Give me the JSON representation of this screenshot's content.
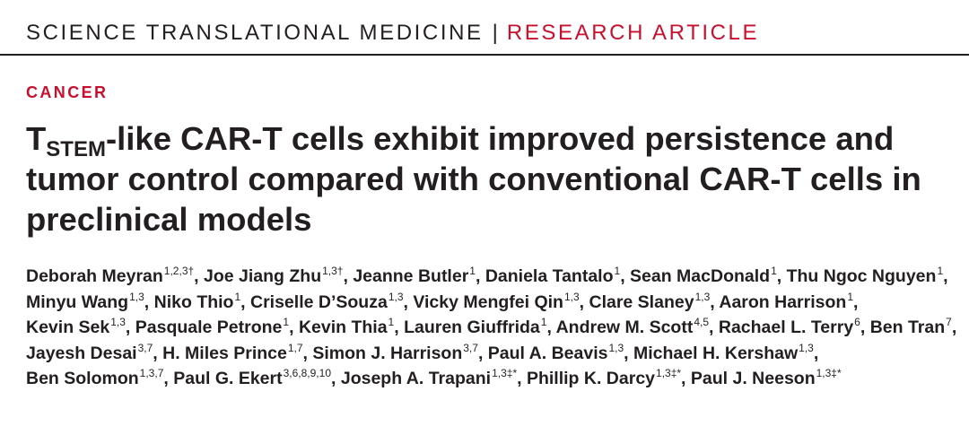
{
  "header": {
    "journal": "SCIENCE TRANSLATIONAL MEDICINE",
    "separator": "|",
    "article_type": "RESEARCH ARTICLE"
  },
  "section": "CANCER",
  "title": {
    "prefix": "T",
    "subscript": "STEM",
    "main": "-like CAR-T cells exhibit improved persistence and tumor control compared with conventional CAR-T cells in preclinical models"
  },
  "authors": [
    {
      "name": "Deborah Meyran",
      "affil": "1,2,3†"
    },
    {
      "name": "Joe Jiang Zhu",
      "affil": "1,3†"
    },
    {
      "name": "Jeanne Butler",
      "affil": "1"
    },
    {
      "name": "Daniela Tantalo",
      "affil": "1"
    },
    {
      "name": "Sean MacDonald",
      "affil": "1"
    },
    {
      "name": "Thu Ngoc Nguyen",
      "affil": "1"
    },
    {
      "name": "Minyu Wang",
      "affil": "1,3"
    },
    {
      "name": "Niko Thio",
      "affil": "1"
    },
    {
      "name": "Criselle D’Souza",
      "affil": "1,3"
    },
    {
      "name": "Vicky Mengfei Qin",
      "affil": "1,3"
    },
    {
      "name": "Clare Slaney",
      "affil": "1,3"
    },
    {
      "name": "Aaron Harrison",
      "affil": "1"
    },
    {
      "name": "Kevin Sek",
      "affil": "1,3"
    },
    {
      "name": "Pasquale Petrone",
      "affil": "1"
    },
    {
      "name": "Kevin Thia",
      "affil": "1"
    },
    {
      "name": "Lauren Giuffrida",
      "affil": "1"
    },
    {
      "name": "Andrew M. Scott",
      "affil": "4,5"
    },
    {
      "name": "Rachael L. Terry",
      "affil": "6"
    },
    {
      "name": "Ben Tran",
      "affil": "7"
    },
    {
      "name": "Jayesh Desai",
      "affil": "3,7"
    },
    {
      "name": "H. Miles Prince",
      "affil": "1,7"
    },
    {
      "name": "Simon J. Harrison",
      "affil": "3,7"
    },
    {
      "name": "Paul A. Beavis",
      "affil": "1,3"
    },
    {
      "name": "Michael H. Kershaw",
      "affil": "1,3"
    },
    {
      "name": "Ben Solomon",
      "affil": "1,3,7"
    },
    {
      "name": "Paul G. Ekert",
      "affil": "3,6,8,9,10"
    },
    {
      "name": "Joseph A. Trapani",
      "affil": "1,3‡*"
    },
    {
      "name": "Phillip K. Darcy",
      "affil": "1,3‡*"
    },
    {
      "name": "Paul J. Neeson",
      "affil": "1,3‡*"
    }
  ],
  "author_separator": ", "
}
